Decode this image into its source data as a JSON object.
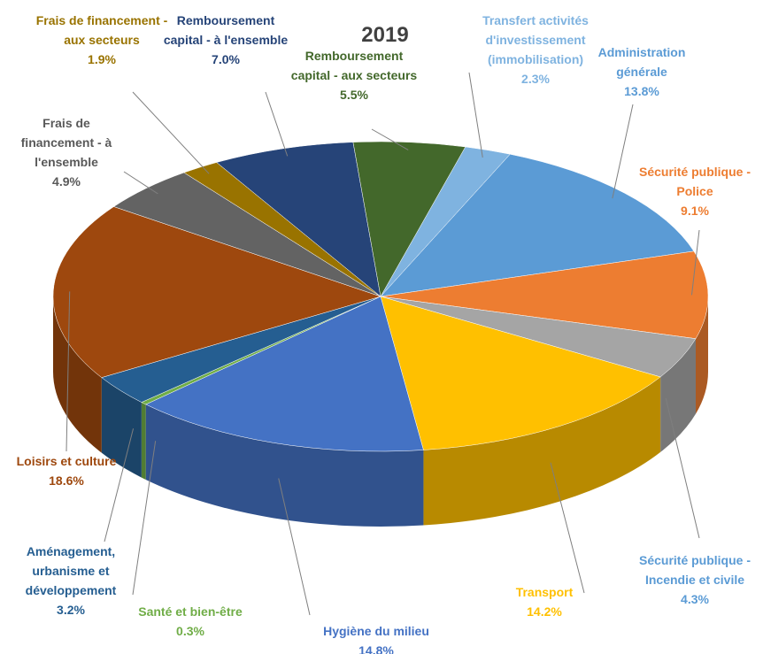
{
  "chart_data": {
    "type": "pie",
    "title": "2019",
    "categories": [
      "Transfert activités d'investissement (immobilisation)",
      "Administration générale",
      "Sécurité publique - Police",
      "Sécurité publique - Incendie et civile",
      "Transport",
      "Hygiène du milieu",
      "Santé et bien-être",
      "Aménagement, urbanisme et développement",
      "Loisirs et culture",
      "Frais de financement - à l'ensemble",
      "Frais de financement - aux secteurs",
      "Remboursement capital - à l'ensemble",
      "Remboursement capital - aux secteurs"
    ],
    "values": [
      2.3,
      13.8,
      9.1,
      4.3,
      14.2,
      14.8,
      0.3,
      3.2,
      18.6,
      4.9,
      1.9,
      7.0,
      5.5
    ],
    "value_labels": [
      "2.3%",
      "13.8%",
      "9.1%",
      "4.3%",
      "14.2%",
      "14.8%",
      "0.3%",
      "3.2%",
      "18.6%",
      "4.9%",
      "1.9%",
      "7.0%",
      "5.5%"
    ],
    "colors": [
      "#7fb3e0",
      "#5b9bd5",
      "#ed7d31",
      "#a5a5a5",
      "#ffc000",
      "#4472c4",
      "#70ad47",
      "#255e91",
      "#9e480e",
      "#636363",
      "#997300",
      "#264478",
      "#43682b"
    ]
  }
}
